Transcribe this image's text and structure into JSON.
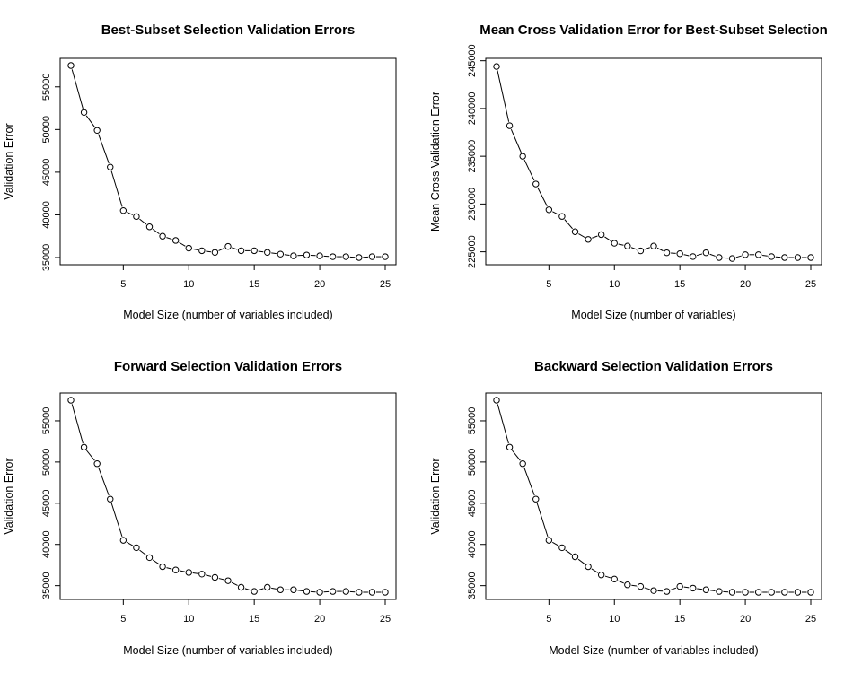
{
  "chart_data": [
    {
      "type": "line",
      "title": "Best-Subset Selection Validation Errors",
      "xlabel": "Model Size (number of variables included)",
      "ylabel": "Validation Error",
      "xlim": [
        1,
        25
      ],
      "ylim": [
        35000,
        57500
      ],
      "xticks": [
        "5",
        "10",
        "15",
        "20",
        "25"
      ],
      "yticks": [
        "35000",
        "40000",
        "45000",
        "50000",
        "55000"
      ],
      "grid": false,
      "x": [
        1,
        2,
        3,
        4,
        5,
        6,
        7,
        8,
        9,
        10,
        11,
        12,
        13,
        14,
        15,
        16,
        17,
        18,
        19,
        20,
        21,
        22,
        23,
        24,
        25
      ],
      "series": [
        {
          "values": [
            57500,
            52000,
            49900,
            45600,
            40500,
            39800,
            38600,
            37500,
            37000,
            36100,
            35800,
            35600,
            36300,
            35800,
            35800,
            35600,
            35400,
            35200,
            35300,
            35200,
            35100,
            35100,
            35000,
            35100,
            35100
          ]
        }
      ]
    },
    {
      "type": "line",
      "title": "Mean Cross Validation Error for Best-Subset Selection",
      "xlabel": "Model Size (number of variables)",
      "ylabel": "Mean Cross Validation Error",
      "xlim": [
        1,
        25
      ],
      "ylim": [
        224400,
        244500
      ],
      "xticks": [
        "5",
        "10",
        "15",
        "20",
        "25"
      ],
      "yticks": [
        "225000",
        "230000",
        "235000",
        "240000",
        "245000"
      ],
      "grid": false,
      "x": [
        1,
        2,
        3,
        4,
        5,
        6,
        7,
        8,
        9,
        10,
        11,
        12,
        13,
        14,
        15,
        16,
        17,
        18,
        19,
        20,
        21,
        22,
        23,
        24,
        25
      ],
      "series": [
        {
          "values": [
            244400,
            238200,
            235000,
            232100,
            229400,
            228700,
            227100,
            226300,
            226800,
            225900,
            225600,
            225100,
            225600,
            224900,
            224800,
            224500,
            224900,
            224400,
            224300,
            224700,
            224700,
            224500,
            224400,
            224400,
            224400
          ]
        }
      ]
    },
    {
      "type": "line",
      "title": "Forward Selection Validation Errors",
      "xlabel": "Model Size (number of variables included)",
      "ylabel": "Validation Error",
      "xlim": [
        1,
        25
      ],
      "ylim": [
        34200,
        57500
      ],
      "xticks": [
        "5",
        "10",
        "15",
        "20",
        "25"
      ],
      "yticks": [
        "35000",
        "40000",
        "45000",
        "50000",
        "55000"
      ],
      "grid": false,
      "x": [
        1,
        2,
        3,
        4,
        5,
        6,
        7,
        8,
        9,
        10,
        11,
        12,
        13,
        14,
        15,
        16,
        17,
        18,
        19,
        20,
        21,
        22,
        23,
        24,
        25
      ],
      "series": [
        {
          "values": [
            57500,
            51800,
            49800,
            45500,
            40500,
            39600,
            38400,
            37300,
            36900,
            36600,
            36400,
            36000,
            35600,
            34800,
            34300,
            34800,
            34500,
            34500,
            34300,
            34200,
            34300,
            34300,
            34200,
            34200,
            34200
          ]
        }
      ]
    },
    {
      "type": "line",
      "title": "Backward Selection Validation Errors",
      "xlabel": "Model Size (number of variables included)",
      "ylabel": "Validation Error",
      "xlim": [
        1,
        25
      ],
      "ylim": [
        34200,
        57500
      ],
      "xticks": [
        "5",
        "10",
        "15",
        "20",
        "25"
      ],
      "yticks": [
        "35000",
        "40000",
        "45000",
        "50000",
        "55000"
      ],
      "grid": false,
      "x": [
        1,
        2,
        3,
        4,
        5,
        6,
        7,
        8,
        9,
        10,
        11,
        12,
        13,
        14,
        15,
        16,
        17,
        18,
        19,
        20,
        21,
        22,
        23,
        24,
        25
      ],
      "series": [
        {
          "values": [
            57500,
            51800,
            49800,
            45500,
            40500,
            39600,
            38500,
            37300,
            36300,
            35800,
            35100,
            34900,
            34400,
            34300,
            34900,
            34700,
            34500,
            34300,
            34200,
            34200,
            34200,
            34200,
            34200,
            34200,
            34200
          ]
        }
      ]
    }
  ]
}
